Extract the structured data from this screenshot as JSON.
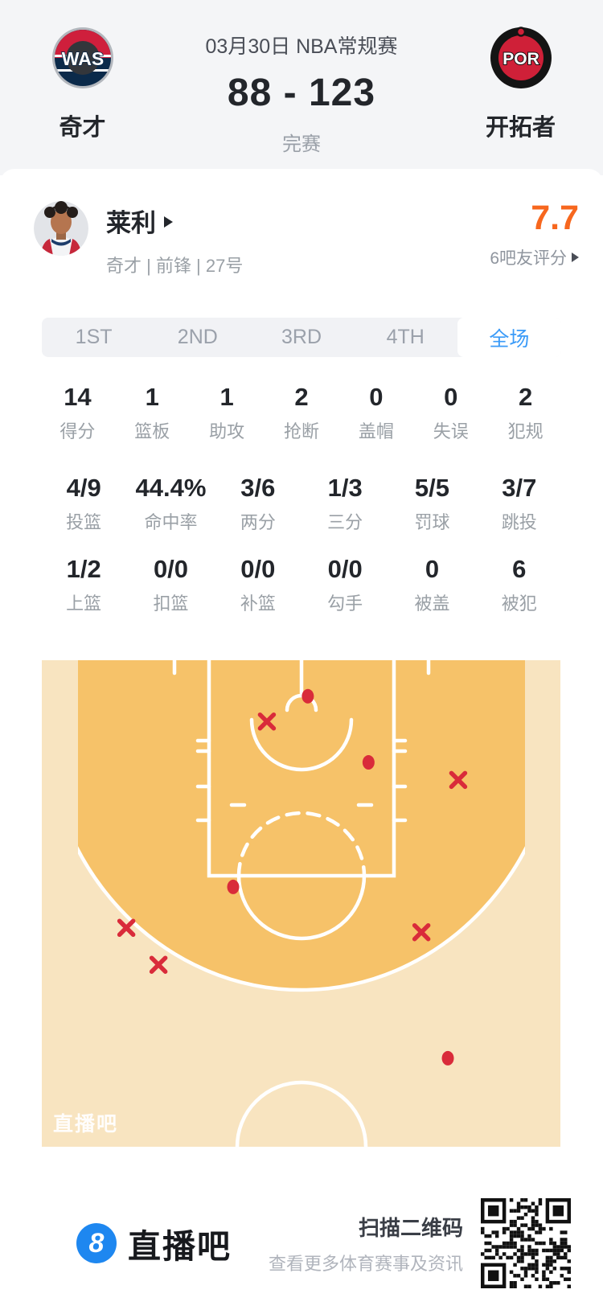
{
  "header": {
    "date_title": "03月30日 NBA常规赛",
    "score": "88 - 123",
    "status": "完赛",
    "home": {
      "abbr": "WAS",
      "name": "奇才"
    },
    "away": {
      "abbr": "POR",
      "name": "开拓者"
    }
  },
  "player": {
    "name": "莱利",
    "meta": "奇才 | 前锋 | 27号",
    "rating": "7.7",
    "rating_label": "6吧友评分"
  },
  "tabs": [
    {
      "label": "1ST",
      "active": false
    },
    {
      "label": "2ND",
      "active": false
    },
    {
      "label": "3RD",
      "active": false
    },
    {
      "label": "4TH",
      "active": false
    },
    {
      "label": "全场",
      "active": true
    }
  ],
  "stats_rows": [
    [
      {
        "value": "14",
        "label": "得分"
      },
      {
        "value": "1",
        "label": "篮板"
      },
      {
        "value": "1",
        "label": "助攻"
      },
      {
        "value": "2",
        "label": "抢断"
      },
      {
        "value": "0",
        "label": "盖帽"
      },
      {
        "value": "0",
        "label": "失误"
      },
      {
        "value": "2",
        "label": "犯规"
      }
    ],
    [
      {
        "value": "4/9",
        "label": "投篮"
      },
      {
        "value": "44.4%",
        "label": "命中率"
      },
      {
        "value": "3/6",
        "label": "两分"
      },
      {
        "value": "1/3",
        "label": "三分"
      },
      {
        "value": "5/5",
        "label": "罚球"
      },
      {
        "value": "3/7",
        "label": "跳投"
      }
    ],
    [
      {
        "value": "1/2",
        "label": "上篮"
      },
      {
        "value": "0/0",
        "label": "扣篮"
      },
      {
        "value": "0/0",
        "label": "补篮"
      },
      {
        "value": "0/0",
        "label": "勾手"
      },
      {
        "value": "0",
        "label": "被盖"
      },
      {
        "value": "6",
        "label": "被犯"
      }
    ]
  ],
  "shot_chart": {
    "watermark": "直播吧",
    "markers": [
      {
        "type": "made",
        "x": 51.3,
        "y": 7.4
      },
      {
        "type": "miss",
        "x": 43.4,
        "y": 12.6
      },
      {
        "type": "made",
        "x": 63.0,
        "y": 21.0
      },
      {
        "type": "miss",
        "x": 80.3,
        "y": 24.6
      },
      {
        "type": "made",
        "x": 36.9,
        "y": 46.6
      },
      {
        "type": "miss",
        "x": 16.3,
        "y": 55.0
      },
      {
        "type": "miss",
        "x": 73.2,
        "y": 55.9
      },
      {
        "type": "miss",
        "x": 22.5,
        "y": 62.6
      },
      {
        "type": "made",
        "x": 78.3,
        "y": 81.8
      }
    ]
  },
  "footer": {
    "logo_char": "8",
    "brand": "直播吧",
    "scan_title": "扫描二维码",
    "scan_sub": "查看更多体育赛事及资讯"
  },
  "colors": {
    "accent_blue": "#3b9bf8",
    "rating_orange": "#f7671e",
    "marker_red": "#d92b3a",
    "court_dark": "#f6c269",
    "court_light": "#f8e4c0",
    "logo_blue": "#1e87f0"
  }
}
